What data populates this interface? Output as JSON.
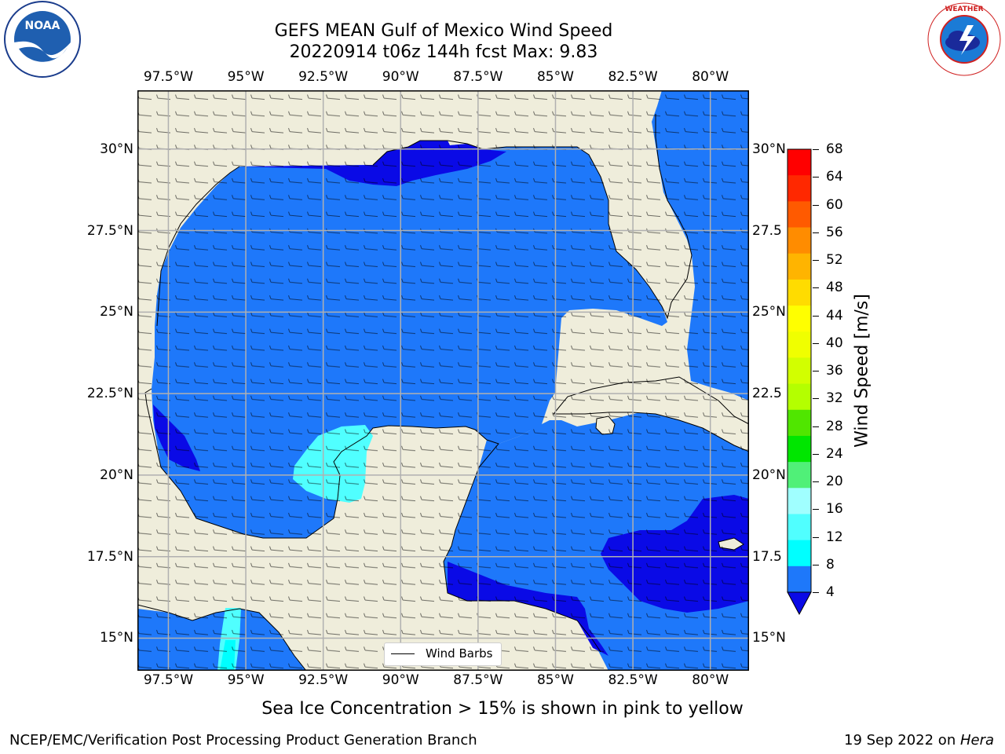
{
  "title": {
    "line1": "GEFS MEAN Gulf of Mexico Wind Speed",
    "line2": "20220914 t06z 144h fcst   Max: 9.83"
  },
  "map": {
    "lon_range": [
      -98.5,
      -78.75
    ],
    "lat_range": [
      14.0,
      31.8
    ],
    "lon_ticks": [
      "97.5°W",
      "95°W",
      "92.5°W",
      "90°W",
      "87.5°W",
      "85°W",
      "82.5°W",
      "80°W"
    ],
    "lat_ticks_left": [
      "30°N",
      "27.5°N",
      "25°N",
      "22.5°N",
      "20°N",
      "17.5°N",
      "15°N"
    ],
    "lat_ticks_right": [
      "30°N",
      "27.5",
      "25°N",
      "22.5",
      "20°N",
      "17.5",
      "15°N"
    ],
    "colors": {
      "land": "#efeddb",
      "wind_4_8": "#1e78fa",
      "wind_below_4": "#0a0ae6",
      "wind_8_12": "#00ffff",
      "wind_12_16": "#50ffff",
      "wind_16_20": "#a0ffff",
      "grid": "#b0b0b0"
    },
    "wind_barbs_direction": "easterly"
  },
  "legend": {
    "label": "Wind Barbs"
  },
  "colorbar": {
    "label": "Wind Speed [m/s]",
    "ticks": [
      "68",
      "64",
      "60",
      "56",
      "52",
      "48",
      "44",
      "40",
      "36",
      "32",
      "28",
      "24",
      "20",
      "16",
      "12",
      "8",
      "4"
    ],
    "bands_top_to_bottom": [
      "#ff0000",
      "#ff2800",
      "#ff5a00",
      "#ff8c00",
      "#ffb400",
      "#ffdc00",
      "#ffff00",
      "#f0ff00",
      "#d2ff00",
      "#b4ff00",
      "#50e600",
      "#00e600",
      "#50f078",
      "#a0ffff",
      "#50ffff",
      "#00ffff",
      "#1e78fa"
    ],
    "extend_color": "#0a0ae6"
  },
  "caption": "Sea Ice Concentration > 15% is shown in pink to yellow",
  "footer": {
    "left": "NCEP/EMC/Verification Post Processing Product Generation Branch",
    "right_prefix": "19 Sep 2022 on ",
    "right_host": "Hera"
  },
  "logos": {
    "left": "NOAA",
    "right": "NATIONAL WEATHER SERVICE"
  }
}
